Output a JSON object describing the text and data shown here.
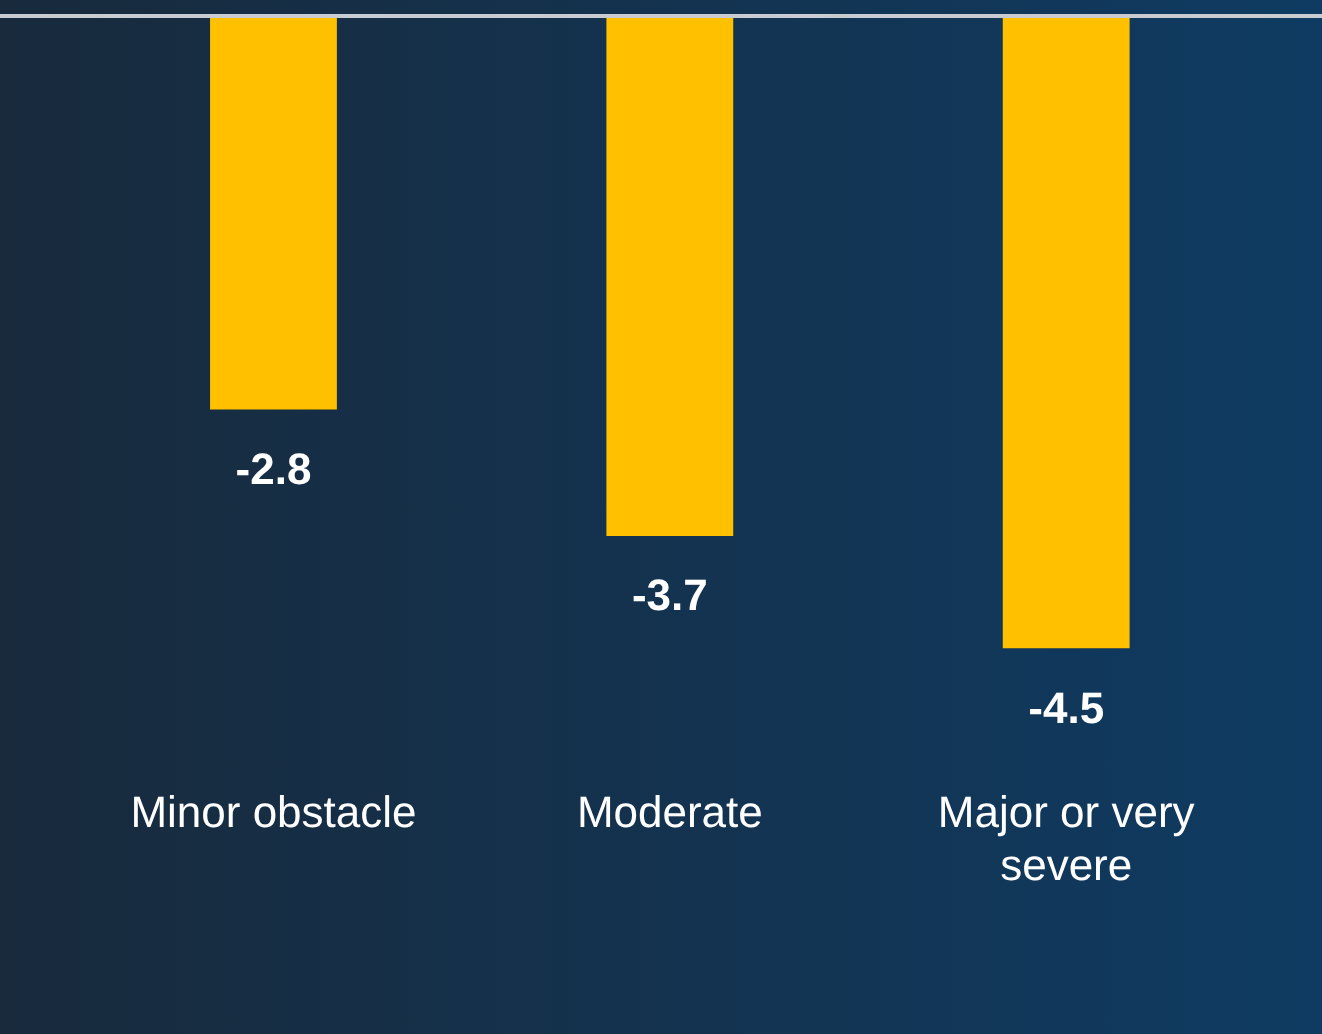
{
  "chart_data": {
    "type": "bar",
    "categories": [
      "Minor obstacle",
      "Moderate",
      "Major or very severe"
    ],
    "values": [
      -2.8,
      -3.7,
      -4.5
    ],
    "color": "#ffc000",
    "data_labels": true,
    "tick_labels": "x",
    "grid": false,
    "legend": false
  }
}
